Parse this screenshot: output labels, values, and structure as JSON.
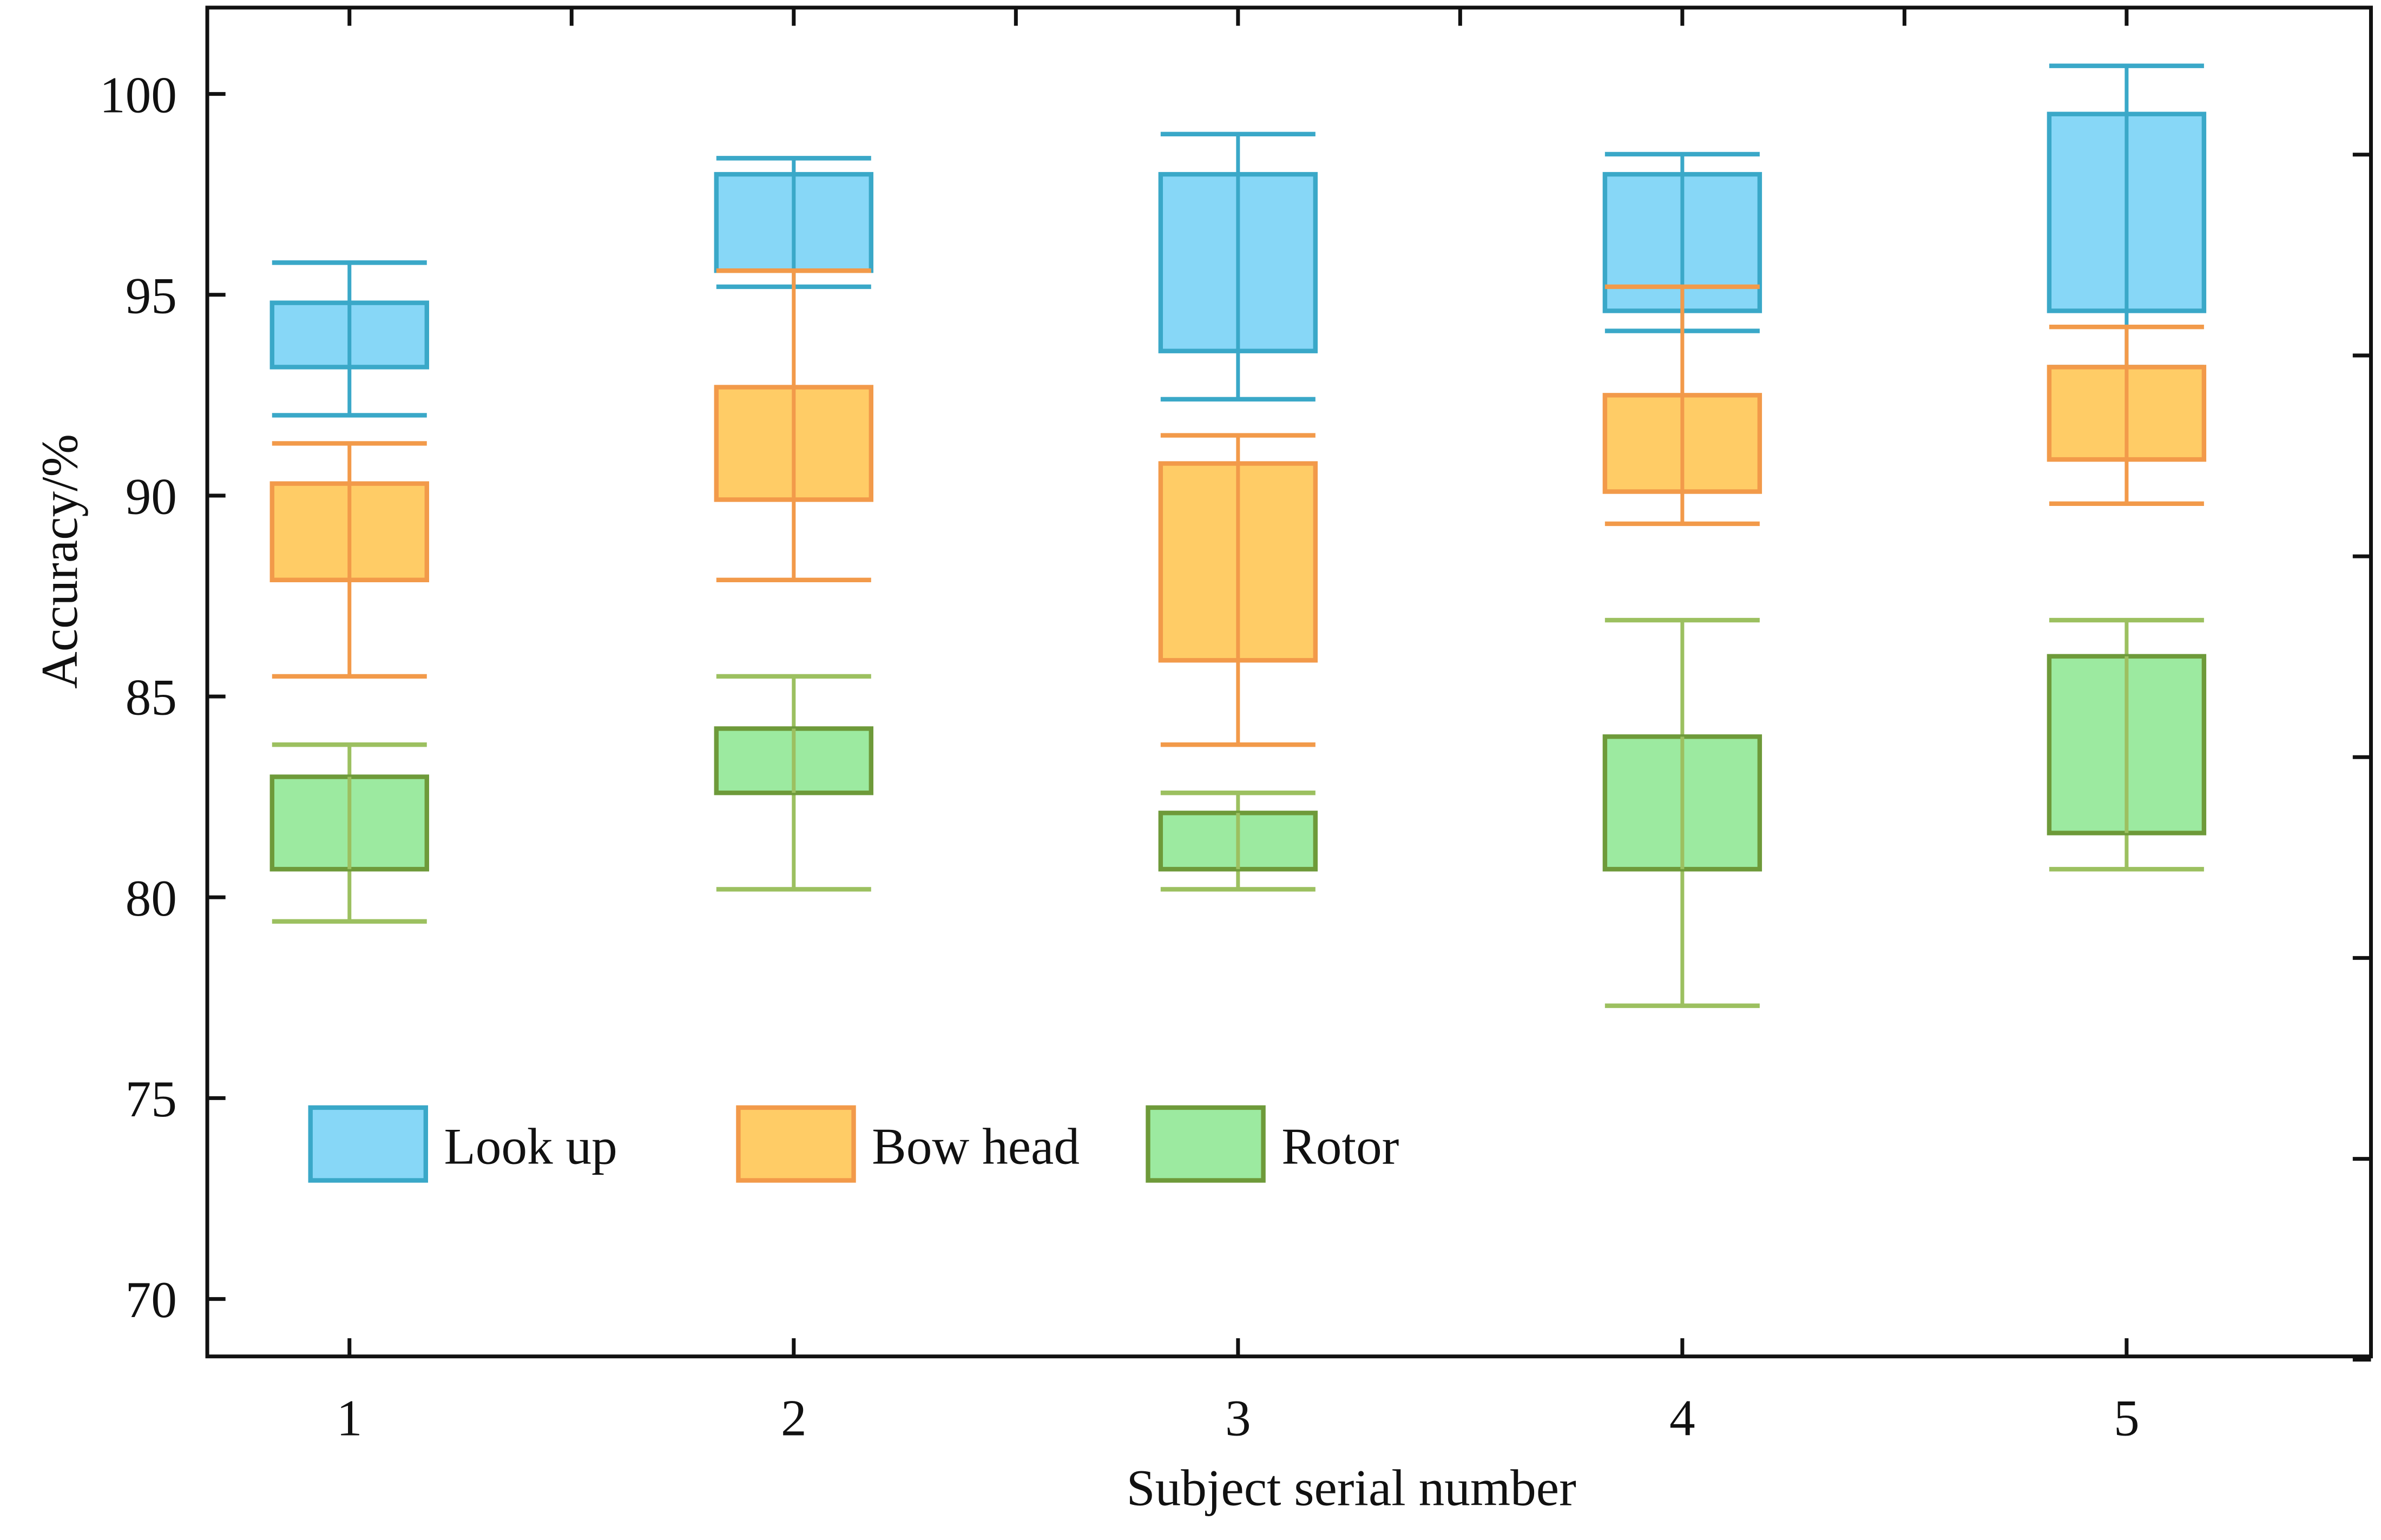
{
  "chart_data": {
    "type": "box",
    "title": "",
    "xlabel": "Subject serial number",
    "ylabel": "Accuracy/%",
    "categories": [
      "1",
      "2",
      "3",
      "4",
      "5"
    ],
    "xlim": [
      0.68,
      5.55
    ],
    "ylim": [
      68.57,
      102.15
    ],
    "yticks": [
      "70",
      "75",
      "80",
      "85",
      "90",
      "95",
      "100"
    ],
    "grid": false,
    "legend_position": "bottom-left",
    "series": [
      {
        "name": "Look up",
        "fill": "#87d7f7",
        "stroke": "#3aa8c8",
        "whisker": "#3aa8c8",
        "boxes": [
          {
            "min": 92.0,
            "q1": 93.2,
            "q3": 94.8,
            "max": 95.8
          },
          {
            "min": 95.2,
            "q1": 95.6,
            "q3": 98.0,
            "max": 98.4
          },
          {
            "min": 92.4,
            "q1": 93.6,
            "q3": 98.0,
            "max": 99.0
          },
          {
            "min": 94.1,
            "q1": 94.6,
            "q3": 98.0,
            "max": 98.5
          },
          {
            "min": 93.2,
            "q1": 94.6,
            "q3": 99.5,
            "max": 100.7
          }
        ]
      },
      {
        "name": "Bow head",
        "fill": "#ffcc66",
        "stroke": "#f29a4a",
        "whisker": "#f29a4a",
        "boxes": [
          {
            "min": 85.5,
            "q1": 87.9,
            "q3": 90.3,
            "max": 91.3
          },
          {
            "min": 87.9,
            "q1": 89.9,
            "q3": 92.7,
            "max": 95.6
          },
          {
            "min": 83.8,
            "q1": 85.9,
            "q3": 90.8,
            "max": 91.5
          },
          {
            "min": 89.3,
            "q1": 90.1,
            "q3": 92.5,
            "max": 95.2
          },
          {
            "min": 89.8,
            "q1": 90.9,
            "q3": 93.2,
            "max": 94.2
          }
        ]
      },
      {
        "name": "Rotor",
        "fill": "#9ceaa0",
        "stroke": "#6e9a3a",
        "whisker": "#9cc060",
        "boxes": [
          {
            "min": 79.4,
            "q1": 80.7,
            "q3": 83.0,
            "max": 83.8
          },
          {
            "min": 80.2,
            "q1": 82.6,
            "q3": 84.2,
            "max": 85.5
          },
          {
            "min": 80.2,
            "q1": 80.7,
            "q3": 82.1,
            "max": 82.6
          },
          {
            "min": 77.3,
            "q1": 80.7,
            "q3": 84.0,
            "max": 86.9
          },
          {
            "min": 80.7,
            "q1": 81.6,
            "q3": 86.0,
            "max": 86.9
          }
        ]
      }
    ]
  }
}
